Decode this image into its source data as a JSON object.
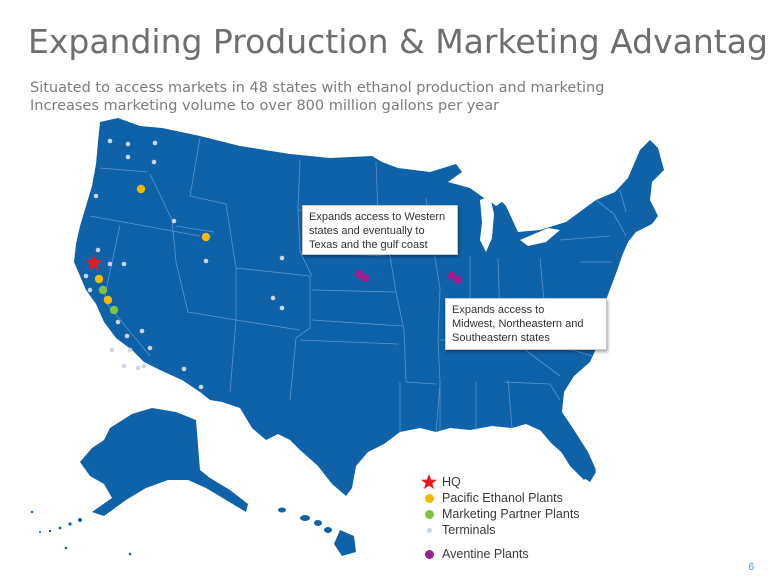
{
  "slide": {
    "title": "Expanding Production & Marketing Advantage",
    "subtitle_line1": "Situated to access markets in 48 states with ethanol production and marketing",
    "subtitle_line2": "Increases marketing volume to over 800 million gallons per year",
    "page_number": "6"
  },
  "callouts": {
    "western": "Expands access to Western\nstates and eventually to\nTexas and the gulf coast",
    "midwest": "Expands access to\nMidwest, Northeastern and\nSoutheastern states"
  },
  "legend": {
    "hq": "HQ",
    "pacific": "Pacific Ethanol Plants",
    "partner": "Marketing Partner Plants",
    "terminals": "Terminals",
    "aventine": "Aventine Plants"
  },
  "colors": {
    "map_fill": "#0f62a8",
    "state_border": "#5b95cc",
    "hq": "#e11b22",
    "pacific": "#f3b800",
    "partner": "#7ec242",
    "terminal": "#c9d6e3",
    "aventine": "#9e1f8f"
  }
}
